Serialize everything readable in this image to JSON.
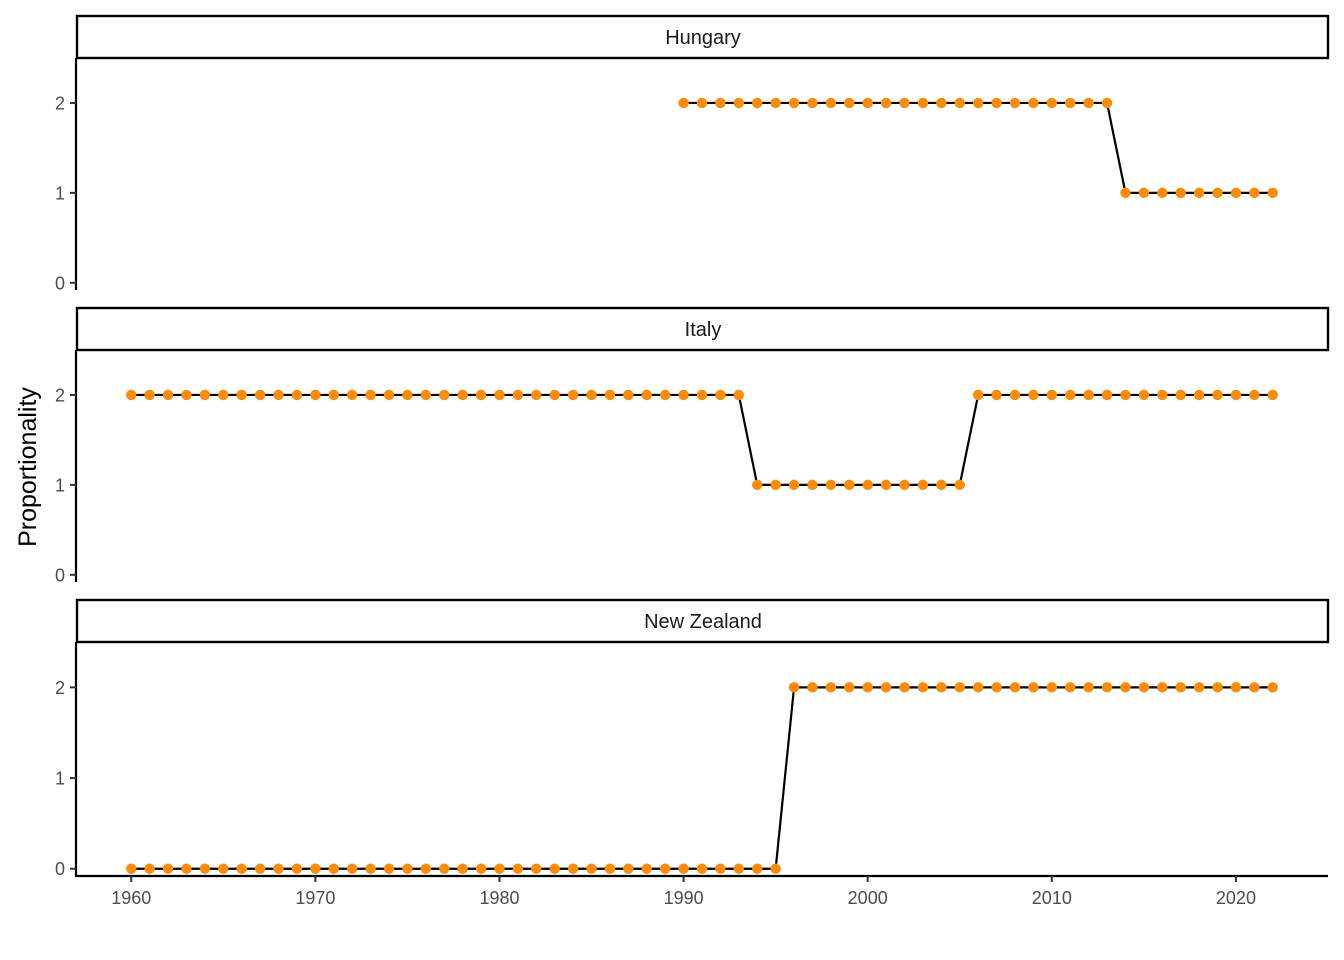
{
  "chart_data": {
    "type": "line",
    "ylabel": "Proportionality",
    "xlabel": "",
    "xlim": [
      1957,
      2025
    ],
    "ylim": [
      -0.08,
      2.5
    ],
    "x_ticks": [
      1960,
      1970,
      1980,
      1990,
      2000,
      2010,
      2020
    ],
    "y_ticks": [
      0,
      1,
      2
    ],
    "marker_color": "#FF8C00",
    "line_color": "#000000",
    "grid": false,
    "panels": [
      {
        "strip": "Hungary",
        "x": [
          1990,
          1991,
          1992,
          1993,
          1994,
          1995,
          1996,
          1997,
          1998,
          1999,
          2000,
          2001,
          2002,
          2003,
          2004,
          2005,
          2006,
          2007,
          2008,
          2009,
          2010,
          2011,
          2012,
          2013,
          2014,
          2015,
          2016,
          2017,
          2018,
          2019,
          2020,
          2021,
          2022
        ],
        "y": [
          2,
          2,
          2,
          2,
          2,
          2,
          2,
          2,
          2,
          2,
          2,
          2,
          2,
          2,
          2,
          2,
          2,
          2,
          2,
          2,
          2,
          2,
          2,
          2,
          1,
          1,
          1,
          1,
          1,
          1,
          1,
          1,
          1
        ]
      },
      {
        "strip": "Italy",
        "x": [
          1960,
          1961,
          1962,
          1963,
          1964,
          1965,
          1966,
          1967,
          1968,
          1969,
          1970,
          1971,
          1972,
          1973,
          1974,
          1975,
          1976,
          1977,
          1978,
          1979,
          1980,
          1981,
          1982,
          1983,
          1984,
          1985,
          1986,
          1987,
          1988,
          1989,
          1990,
          1991,
          1992,
          1993,
          1994,
          1995,
          1996,
          1997,
          1998,
          1999,
          2000,
          2001,
          2002,
          2003,
          2004,
          2005,
          2006,
          2007,
          2008,
          2009,
          2010,
          2011,
          2012,
          2013,
          2014,
          2015,
          2016,
          2017,
          2018,
          2019,
          2020,
          2021,
          2022
        ],
        "y": [
          2,
          2,
          2,
          2,
          2,
          2,
          2,
          2,
          2,
          2,
          2,
          2,
          2,
          2,
          2,
          2,
          2,
          2,
          2,
          2,
          2,
          2,
          2,
          2,
          2,
          2,
          2,
          2,
          2,
          2,
          2,
          2,
          2,
          2,
          1,
          1,
          1,
          1,
          1,
          1,
          1,
          1,
          1,
          1,
          1,
          1,
          2,
          2,
          2,
          2,
          2,
          2,
          2,
          2,
          2,
          2,
          2,
          2,
          2,
          2,
          2,
          2,
          2
        ]
      },
      {
        "strip": "New Zealand",
        "x": [
          1960,
          1961,
          1962,
          1963,
          1964,
          1965,
          1966,
          1967,
          1968,
          1969,
          1970,
          1971,
          1972,
          1973,
          1974,
          1975,
          1976,
          1977,
          1978,
          1979,
          1980,
          1981,
          1982,
          1983,
          1984,
          1985,
          1986,
          1987,
          1988,
          1989,
          1990,
          1991,
          1992,
          1993,
          1994,
          1995,
          1996,
          1997,
          1998,
          1999,
          2000,
          2001,
          2002,
          2003,
          2004,
          2005,
          2006,
          2007,
          2008,
          2009,
          2010,
          2011,
          2012,
          2013,
          2014,
          2015,
          2016,
          2017,
          2018,
          2019,
          2020,
          2021,
          2022
        ],
        "y": [
          0,
          0,
          0,
          0,
          0,
          0,
          0,
          0,
          0,
          0,
          0,
          0,
          0,
          0,
          0,
          0,
          0,
          0,
          0,
          0,
          0,
          0,
          0,
          0,
          0,
          0,
          0,
          0,
          0,
          0,
          0,
          0,
          0,
          0,
          0,
          0,
          2,
          2,
          2,
          2,
          2,
          2,
          2,
          2,
          2,
          2,
          2,
          2,
          2,
          2,
          2,
          2,
          2,
          2,
          2,
          2,
          2,
          2,
          2,
          2,
          2,
          2,
          2
        ]
      }
    ]
  }
}
